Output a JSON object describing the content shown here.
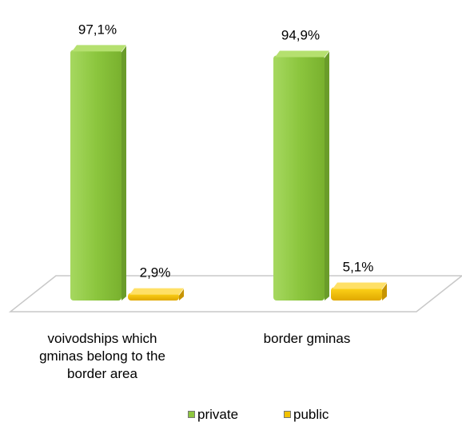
{
  "chart_data": {
    "type": "bar",
    "categories": [
      "voivodships which\ngminas belong to the\nborder area",
      "border gminas"
    ],
    "series": [
      {
        "name": "private",
        "values": [
          97.1,
          94.9
        ],
        "labels": [
          "97,1%",
          "94,9%"
        ],
        "color": "#8dc63f"
      },
      {
        "name": "public",
        "values": [
          2.9,
          5.1
        ],
        "labels": [
          "2,9%",
          "5,1%"
        ],
        "color": "#f2c200"
      }
    ],
    "ylim": [
      0,
      100
    ],
    "unit": "%",
    "grid": false,
    "legend_position": "bottom"
  }
}
